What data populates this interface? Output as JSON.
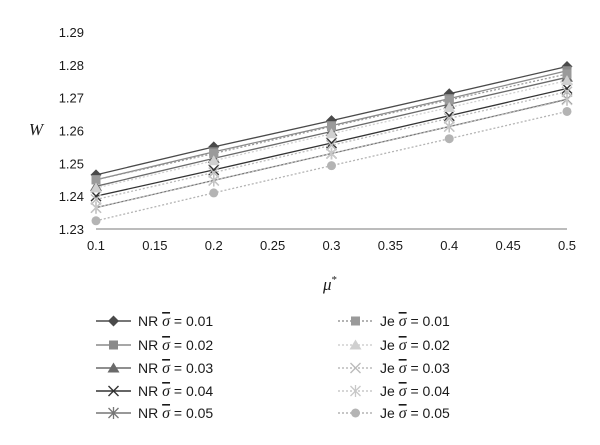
{
  "chart_data": {
    "type": "line",
    "title": "",
    "xlabel": "μ",
    "xlabel_sup": "*",
    "ylabel": "W",
    "xlim": [
      0.1,
      0.5
    ],
    "ylim": [
      1.23,
      1.29
    ],
    "x_ticks": [
      "0.1",
      "0.15",
      "0.2",
      "0.25",
      "0.3",
      "0.35",
      "0.4",
      "0.45",
      "0.5"
    ],
    "y_ticks": [
      "1.23",
      "1.24",
      "1.25",
      "1.26",
      "1.27",
      "1.28",
      "1.29"
    ],
    "x": [
      0.1,
      0.2,
      0.3,
      0.4,
      0.5
    ],
    "grid": false,
    "legend_position": "bottom",
    "series": [
      {
        "name": "NR σ = 0.01",
        "prefix": "NR",
        "sigma_value": "= 0.01",
        "marker": "diamond",
        "color": "#4a4a4a",
        "dash": "solid",
        "values": [
          1.2465,
          1.255,
          1.263,
          1.2712,
          1.2795
        ]
      },
      {
        "name": "NR σ = 0.02",
        "prefix": "NR",
        "sigma_value": "= 0.02",
        "marker": "square",
        "color": "#8a8a8a",
        "dash": "solid",
        "values": [
          1.245,
          1.2535,
          1.2615,
          1.2697,
          1.2782
        ]
      },
      {
        "name": "NR σ = 0.03",
        "prefix": "NR",
        "sigma_value": "= 0.03",
        "marker": "triangle",
        "color": "#6a6a6a",
        "dash": "solid",
        "values": [
          1.243,
          1.2515,
          1.2597,
          1.268,
          1.2762
        ]
      },
      {
        "name": "NR σ = 0.04",
        "prefix": "NR",
        "sigma_value": "= 0.04",
        "marker": "x",
        "color": "#333333",
        "dash": "solid",
        "values": [
          1.24,
          1.248,
          1.2562,
          1.2645,
          1.2728
        ]
      },
      {
        "name": "NR σ = 0.05",
        "prefix": "NR",
        "sigma_value": "= 0.05",
        "marker": "star",
        "color": "#777777",
        "dash": "solid",
        "values": [
          1.2365,
          1.2448,
          1.253,
          1.2612,
          1.2695
        ]
      },
      {
        "name": "Je σ = 0.01",
        "prefix": "Je",
        "sigma_value": "= 0.01",
        "marker": "square",
        "color": "#9a9a9a",
        "dash": "dot",
        "values": [
          1.245,
          1.253,
          1.2612,
          1.2693,
          1.2772
        ]
      },
      {
        "name": "Je σ = 0.02",
        "prefix": "Je",
        "sigma_value": "= 0.02",
        "marker": "triangle",
        "color": "#d0d0d0",
        "dash": "dot",
        "values": [
          1.2425,
          1.2508,
          1.259,
          1.267,
          1.2752
        ]
      },
      {
        "name": "Je σ = 0.03",
        "prefix": "Je",
        "sigma_value": "= 0.03",
        "marker": "x",
        "color": "#bbbbbb",
        "dash": "dot",
        "values": [
          1.239,
          1.2472,
          1.2555,
          1.2637,
          1.2718
        ]
      },
      {
        "name": "Je σ = 0.04",
        "prefix": "Je",
        "sigma_value": "= 0.04",
        "marker": "star",
        "color": "#c8c8c8",
        "dash": "dot",
        "values": [
          1.2365,
          1.2448,
          1.253,
          1.2612,
          1.2693
        ]
      },
      {
        "name": "Je σ = 0.05",
        "prefix": "Je",
        "sigma_value": "= 0.05",
        "marker": "circle",
        "color": "#b4b4b4",
        "dash": "dot",
        "values": [
          1.2325,
          1.241,
          1.2493,
          1.2575,
          1.2658
        ]
      }
    ]
  }
}
